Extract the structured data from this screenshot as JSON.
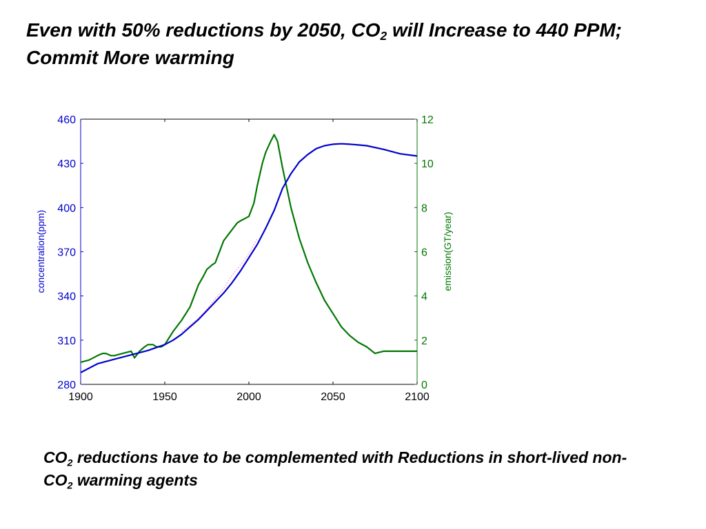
{
  "title": {
    "part1": "Even with 50% reductions by 2050, CO",
    "sub": "2",
    "part2": " will Increase to 440 PPM; Commit More warming"
  },
  "caption": {
    "part1": "CO",
    "sub1": "2",
    "part2": " reductions have to be complemented with Reductions in short-lived non-CO",
    "sub2": "2",
    "part3": " warming agents"
  },
  "chart_data": {
    "type": "line",
    "title": "",
    "xlabel": "",
    "ylabel": "concentration(ppm)",
    "y2label": "emission(GT/year)",
    "xlim": [
      1900,
      2100
    ],
    "ylim": [
      280,
      460
    ],
    "y2lim": [
      0,
      12
    ],
    "xticks": [
      1900,
      1950,
      2000,
      2050,
      2100
    ],
    "yticks": [
      280,
      310,
      340,
      370,
      400,
      430,
      460
    ],
    "y2ticks": [
      0,
      2,
      4,
      6,
      8,
      10,
      12
    ],
    "grid": false,
    "colors": {
      "concentration": "#0000cc",
      "emission": "#007700",
      "observed": "#ff88cc"
    },
    "series": [
      {
        "key": "concentration",
        "axis": "left",
        "x": [
          1900,
          1910,
          1920,
          1930,
          1940,
          1950,
          1955,
          1960,
          1965,
          1970,
          1975,
          1980,
          1985,
          1990,
          1995,
          2000,
          2005,
          2010,
          2015,
          2020,
          2025,
          2030,
          2035,
          2040,
          2045,
          2050,
          2055,
          2060,
          2065,
          2070,
          2080,
          2090,
          2100
        ],
        "values": [
          288,
          294,
          297,
          300,
          303,
          307,
          310,
          314,
          319,
          324,
          330,
          336,
          342,
          349,
          357,
          366,
          375,
          386,
          398,
          413,
          423,
          431,
          436,
          440,
          442,
          443,
          443.3,
          443,
          442.5,
          442,
          439.5,
          436.5,
          435
        ]
      },
      {
        "key": "emission",
        "axis": "right",
        "x": [
          1900,
          1905,
          1910,
          1913,
          1915,
          1918,
          1920,
          1925,
          1930,
          1932,
          1935,
          1938,
          1940,
          1943,
          1945,
          1948,
          1950,
          1955,
          1960,
          1965,
          1970,
          1973,
          1975,
          1978,
          1980,
          1982,
          1985,
          1988,
          1990,
          1993,
          1995,
          2000,
          2003,
          2005,
          2008,
          2010,
          2013,
          2015,
          2017,
          2020,
          2025,
          2030,
          2035,
          2040,
          2045,
          2050,
          2055,
          2060,
          2065,
          2070,
          2075,
          2080,
          2085,
          2090,
          2095,
          2100
        ],
        "values": [
          1.0,
          1.1,
          1.3,
          1.4,
          1.4,
          1.3,
          1.3,
          1.4,
          1.5,
          1.2,
          1.5,
          1.7,
          1.8,
          1.8,
          1.7,
          1.7,
          1.8,
          2.4,
          2.9,
          3.5,
          4.5,
          4.9,
          5.2,
          5.4,
          5.5,
          5.9,
          6.5,
          6.8,
          7.0,
          7.3,
          7.4,
          7.6,
          8.2,
          9.0,
          10.0,
          10.5,
          11.0,
          11.3,
          11.0,
          9.8,
          8.0,
          6.6,
          5.5,
          4.6,
          3.8,
          3.2,
          2.6,
          2.2,
          1.9,
          1.7,
          1.4,
          1.5,
          1.5,
          1.5,
          1.5,
          1.5
        ]
      },
      {
        "key": "observed",
        "axis": "left",
        "x": [
          1960,
          1965,
          1970,
          1975,
          1980,
          1985,
          1990,
          1995,
          2000,
          2005
        ],
        "values": [
          316,
          320,
          325,
          331,
          338,
          345,
          354,
          361,
          369,
          379
        ]
      }
    ]
  }
}
